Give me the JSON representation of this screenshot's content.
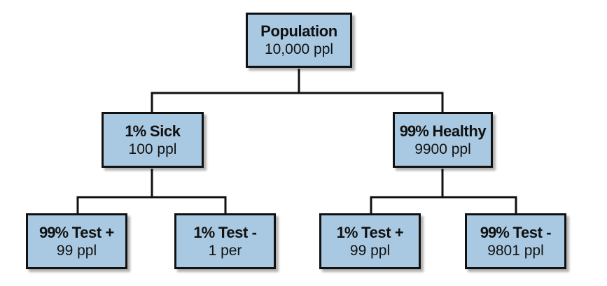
{
  "diagram": {
    "root": {
      "title": "Population",
      "value": "10,000 ppl"
    },
    "sick": {
      "percent": "1%",
      "label": "Sick",
      "value": "100 ppl",
      "test_positive": {
        "percent": "99%",
        "label": "Test +",
        "value": "99 ppl"
      },
      "test_negative": {
        "percent": "1%",
        "label": "Test -",
        "value": "1 per"
      }
    },
    "healthy": {
      "percent": "99%",
      "label": "Healthy",
      "value": "9900 ppl",
      "test_positive": {
        "percent": "1%",
        "label": "Test +",
        "value": "99 ppl"
      },
      "test_negative": {
        "percent": "99%",
        "label": "Test -",
        "value": "9801 ppl"
      }
    },
    "colors": {
      "box_fill": "#a9c9e2",
      "box_border": "#111111",
      "connector": "#111111"
    }
  }
}
